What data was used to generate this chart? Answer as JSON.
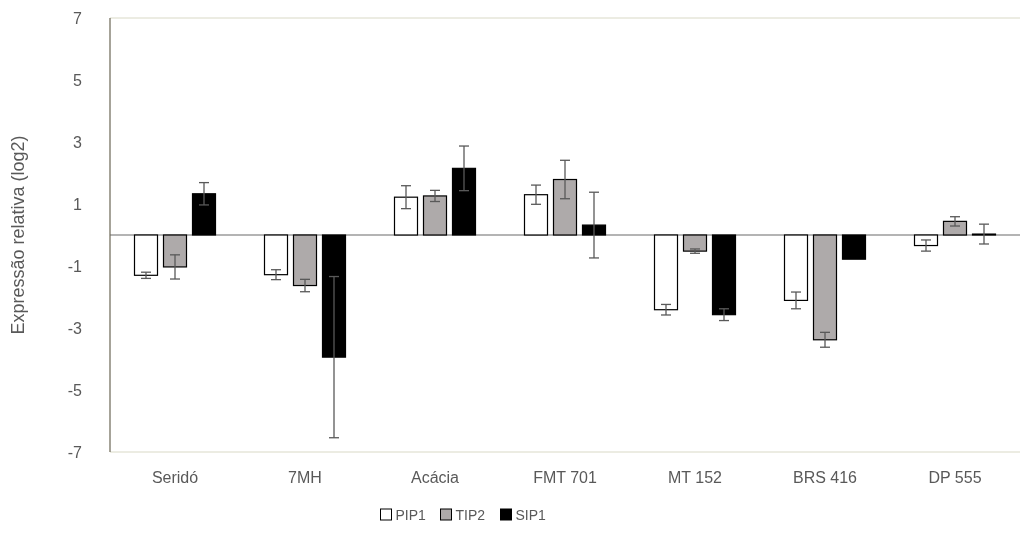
{
  "chart_data": {
    "type": "bar",
    "ylabel": "Expressão relativa (log2)",
    "categories": [
      "Seridó",
      "7MH",
      "Acácia",
      "FMT 701",
      "MT 152",
      "BRS 416",
      "DP 555"
    ],
    "series": [
      {
        "name": "PIP1",
        "color": "#ffffff",
        "values": [
          -1.3,
          -1.28,
          1.22,
          1.3,
          -2.41,
          -2.11,
          -0.34
        ],
        "errors": [
          0.1,
          0.16,
          0.37,
          0.31,
          0.17,
          0.27,
          0.18
        ]
      },
      {
        "name": "TIP2",
        "color": "#aeaaaa",
        "values": [
          -1.03,
          -1.63,
          1.26,
          1.79,
          -0.52,
          -3.38,
          0.44
        ],
        "errors": [
          0.39,
          0.2,
          0.18,
          0.62,
          0.07,
          0.24,
          0.15
        ]
      },
      {
        "name": "SIP1",
        "color": "#000000",
        "values": [
          1.33,
          -3.94,
          2.15,
          0.32,
          -2.57,
          -0.78,
          0.03
        ],
        "errors": [
          0.36,
          2.6,
          0.72,
          1.06,
          0.19,
          null,
          0.32
        ]
      }
    ],
    "ylim": [
      -7,
      7
    ],
    "yticks": [
      -7,
      -5,
      -3,
      -1,
      1,
      3,
      5,
      7
    ],
    "grid": false,
    "legend": "bottom"
  }
}
